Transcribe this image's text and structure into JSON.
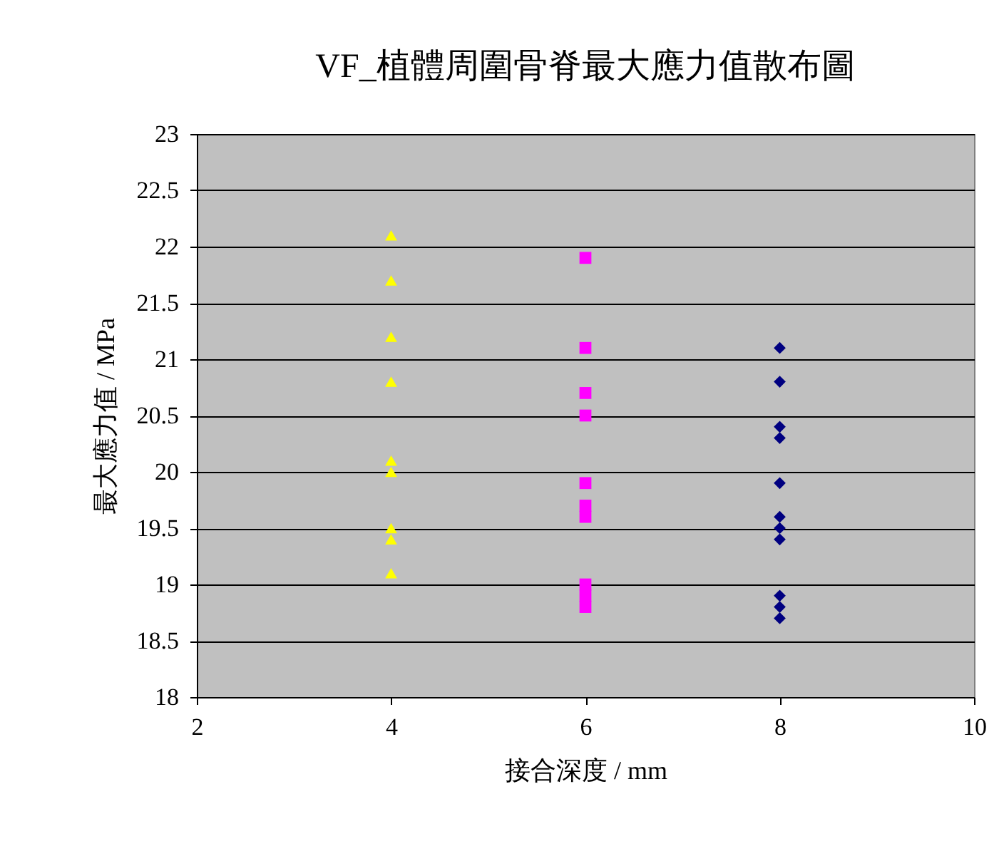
{
  "chart_data": {
    "type": "scatter",
    "title": "VF_植體周圍骨脊最大應力值散布圖",
    "xlabel": "接合深度 / mm",
    "ylabel": "最大應力值 / MPa",
    "xlim": [
      2,
      10
    ],
    "xticks": [
      2,
      4,
      6,
      8,
      10
    ],
    "ylim": [
      18,
      23
    ],
    "yticks": [
      18,
      18.5,
      19,
      19.5,
      20,
      20.5,
      21,
      21.5,
      22,
      22.5,
      23
    ],
    "grid": "y",
    "series": [
      {
        "color": "#ffff00",
        "marker": "triangle",
        "x": [
          4,
          4,
          4,
          4,
          4,
          4,
          4,
          4,
          4
        ],
        "values": [
          22.1,
          21.7,
          21.2,
          20.8,
          20.1,
          20.0,
          19.5,
          19.4,
          19.1
        ]
      },
      {
        "color": "#ff00ff",
        "marker": "square",
        "x": [
          6,
          6,
          6,
          6,
          6,
          6,
          6,
          6,
          6,
          6
        ],
        "values": [
          21.9,
          21.1,
          20.7,
          20.5,
          19.9,
          19.7,
          19.6,
          19.0,
          18.9,
          18.8
        ]
      },
      {
        "color": "#000080",
        "marker": "diamond",
        "x": [
          8,
          8,
          8,
          8,
          8,
          8,
          8,
          8,
          8,
          8,
          8
        ],
        "values": [
          21.1,
          20.8,
          20.4,
          20.3,
          19.9,
          19.6,
          19.5,
          19.4,
          18.9,
          18.8,
          18.7
        ]
      }
    ]
  }
}
